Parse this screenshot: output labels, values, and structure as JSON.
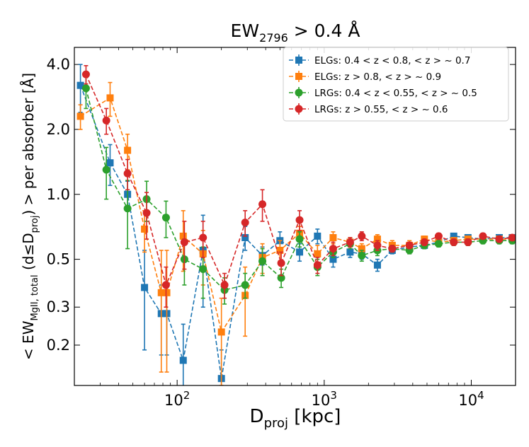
{
  "chart_data": {
    "type": "line",
    "title": "EW_2796 > 0.4 Å",
    "title_parts": {
      "base": "EW",
      "sub": "2796",
      "rest": " > 0.4 Å"
    },
    "xlabel": "D_proj [kpc]",
    "xlabel_parts": {
      "base": "D",
      "sub": "proj",
      "rest": " [kpc]"
    },
    "ylabel": "< EW_MgII, total (d≤D_proj) > per absorber [Å]",
    "ylabel_parts": {
      "a": "< EW",
      "sub1": "MgII, total",
      "b": " (d≤D",
      "sub2": "proj",
      "c": ") >  per absorber [Å]"
    },
    "x_scale": "log",
    "y_scale": "log",
    "xlim": [
      20,
      20000
    ],
    "ylim": [
      0.13,
      4.8
    ],
    "x_ticks": [
      {
        "value": 100,
        "base": "10",
        "exp": "2"
      },
      {
        "value": 1000,
        "base": "10",
        "exp": "3"
      },
      {
        "value": 10000,
        "base": "10",
        "exp": "4"
      }
    ],
    "y_ticks": [
      {
        "value": 0.2,
        "label": "0.2"
      },
      {
        "value": 0.3,
        "label": "0.3"
      },
      {
        "value": 0.5,
        "label": "0.5"
      },
      {
        "value": 1.0,
        "label": "1.0"
      },
      {
        "value": 2.0,
        "label": "2.0"
      },
      {
        "value": 4.0,
        "label": "4.0"
      }
    ],
    "legend_position": "top-right",
    "series": [
      {
        "name": "ELGs: 0.4 < z < 0.8,  < z > ~ 0.7",
        "color": "#1f77b4",
        "marker": "square",
        "x": [
          22,
          35,
          46,
          60,
          78,
          85,
          110,
          150,
          200,
          290,
          380,
          500,
          680,
          900,
          1150,
          1500,
          1800,
          2300,
          2900,
          3800,
          4800,
          6000,
          7600,
          9500,
          12000,
          15500,
          19000
        ],
        "y": [
          3.2,
          1.4,
          1.0,
          0.37,
          0.28,
          0.28,
          0.17,
          0.55,
          0.14,
          0.63,
          0.52,
          0.61,
          0.54,
          0.64,
          0.5,
          0.54,
          0.53,
          0.47,
          0.55,
          0.57,
          0.58,
          0.6,
          0.64,
          0.63,
          0.62,
          0.63,
          0.63
        ],
        "err": [
          0.8,
          0.3,
          0.15,
          0.18,
          0.1,
          0.1,
          0.08,
          0.25,
          0.05,
          0.08,
          0.05,
          0.06,
          0.05,
          0.05,
          0.04,
          0.03,
          0.03,
          0.03,
          0.02,
          0.02,
          0.02,
          0.02,
          0.02,
          0.02,
          0.02,
          0.02,
          0.02
        ]
      },
      {
        "name": "ELGs: z > 0.8,  < z > ~ 0.9",
        "color": "#ff7f0e",
        "marker": "square",
        "x": [
          22,
          35,
          46,
          60,
          78,
          85,
          110,
          150,
          200,
          290,
          380,
          500,
          680,
          900,
          1150,
          1500,
          1800,
          2300,
          2900,
          3800,
          4800,
          6000,
          7600,
          9500,
          12000,
          15500,
          19000
        ],
        "y": [
          2.3,
          2.8,
          1.6,
          0.69,
          0.35,
          0.35,
          0.64,
          0.53,
          0.23,
          0.34,
          0.51,
          0.55,
          0.66,
          0.53,
          0.63,
          0.6,
          0.56,
          0.62,
          0.58,
          0.58,
          0.62,
          0.6,
          0.61,
          0.62,
          0.62,
          0.62,
          0.62
        ],
        "err": [
          0.3,
          0.5,
          0.3,
          0.15,
          0.2,
          0.2,
          0.2,
          0.15,
          0.1,
          0.12,
          0.08,
          0.06,
          0.05,
          0.05,
          0.04,
          0.03,
          0.03,
          0.03,
          0.03,
          0.03,
          0.02,
          0.02,
          0.02,
          0.02,
          0.02,
          0.02,
          0.02
        ]
      },
      {
        "name": "LRGs: 0.4 < z < 0.55,  < z > ~ 0.5",
        "color": "#2ca02c",
        "marker": "circle",
        "x": [
          24,
          33,
          46,
          62,
          84,
          112,
          150,
          210,
          290,
          380,
          510,
          680,
          900,
          1150,
          1500,
          1800,
          2300,
          2900,
          3800,
          4800,
          6000,
          7600,
          9500,
          12000,
          15500,
          19000
        ],
        "y": [
          3.1,
          1.3,
          0.86,
          0.95,
          0.78,
          0.5,
          0.45,
          0.36,
          0.38,
          0.49,
          0.41,
          0.62,
          0.46,
          0.54,
          0.59,
          0.52,
          0.55,
          0.56,
          0.55,
          0.58,
          0.59,
          0.6,
          0.6,
          0.61,
          0.61,
          0.61
        ],
        "err": [
          0.6,
          0.35,
          0.3,
          0.2,
          0.15,
          0.12,
          0.12,
          0.05,
          0.05,
          0.07,
          0.04,
          0.05,
          0.04,
          0.03,
          0.03,
          0.03,
          0.03,
          0.02,
          0.02,
          0.02,
          0.02,
          0.02,
          0.02,
          0.02,
          0.02,
          0.02
        ]
      },
      {
        "name": "LRGs: z > 0.55,  < z > ~ 0.6",
        "color": "#d62728",
        "marker": "circle",
        "x": [
          24,
          33,
          46,
          62,
          84,
          112,
          150,
          210,
          290,
          380,
          510,
          680,
          900,
          1150,
          1500,
          1800,
          2300,
          2900,
          3800,
          4800,
          6000,
          7600,
          9500,
          12000,
          15500,
          19000
        ],
        "y": [
          3.6,
          2.2,
          1.25,
          0.82,
          0.38,
          0.6,
          0.63,
          0.38,
          0.74,
          0.9,
          0.48,
          0.76,
          0.47,
          0.56,
          0.6,
          0.64,
          0.58,
          0.56,
          0.58,
          0.6,
          0.64,
          0.6,
          0.6,
          0.64,
          0.62,
          0.63
        ],
        "err": [
          0.35,
          0.3,
          0.2,
          0.2,
          0.08,
          0.15,
          0.12,
          0.05,
          0.1,
          0.15,
          0.06,
          0.08,
          0.04,
          0.04,
          0.03,
          0.03,
          0.03,
          0.02,
          0.02,
          0.02,
          0.02,
          0.02,
          0.02,
          0.02,
          0.02,
          0.02
        ]
      }
    ]
  }
}
